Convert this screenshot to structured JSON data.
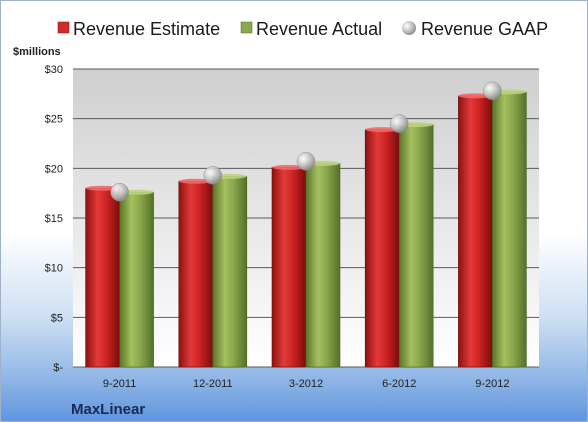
{
  "chart_data": {
    "type": "bar",
    "ylabel": "$millions",
    "categories": [
      "9-2011",
      "12-2011",
      "3-2012",
      "6-2012",
      "9-2012"
    ],
    "series": [
      {
        "name": "Revenue Estimate",
        "kind": "bar",
        "color": "#d42a2a",
        "values": [
          18.0,
          18.7,
          20.1,
          23.9,
          27.3
        ]
      },
      {
        "name": "Revenue Actual",
        "kind": "bar",
        "color": "#8aa84c",
        "values": [
          17.6,
          19.2,
          20.5,
          24.4,
          27.7
        ]
      },
      {
        "name": "Revenue GAAP",
        "kind": "marker",
        "color": "#b8b8b8",
        "values": [
          17.6,
          19.3,
          20.7,
          24.5,
          27.8
        ]
      }
    ],
    "ylim": [
      0,
      30
    ],
    "yticks": [
      0,
      5,
      10,
      15,
      20,
      25,
      30
    ],
    "ytick_labels": [
      "$-",
      "$5",
      "$10",
      "$15",
      "$20",
      "$25",
      "$30"
    ],
    "grid": true,
    "legend_position": "top"
  },
  "company": "MaxLinear"
}
